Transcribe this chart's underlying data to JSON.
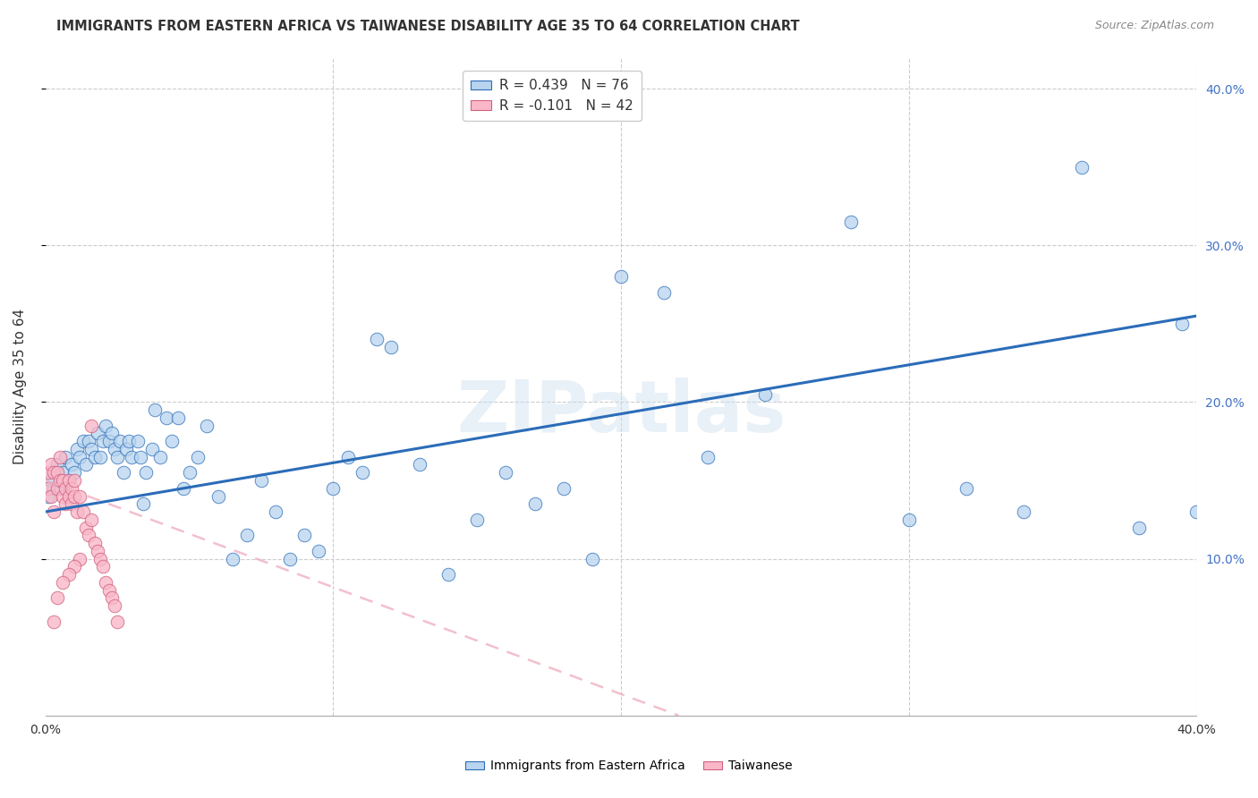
{
  "title": "IMMIGRANTS FROM EASTERN AFRICA VS TAIWANESE DISABILITY AGE 35 TO 64 CORRELATION CHART",
  "source": "Source: ZipAtlas.com",
  "ylabel": "Disability Age 35 to 64",
  "xmin": 0.0,
  "xmax": 0.4,
  "ymin": 0.0,
  "ymax": 0.42,
  "x_ticks": [
    0.0,
    0.1,
    0.2,
    0.3,
    0.4
  ],
  "x_tick_labels": [
    "0.0%",
    "",
    "",
    "",
    "40.0%"
  ],
  "y_ticks": [
    0.1,
    0.2,
    0.3,
    0.4
  ],
  "y_tick_labels": [
    "10.0%",
    "20.0%",
    "30.0%",
    "40.0%"
  ],
  "legend1_label": "R = 0.439   N = 76",
  "legend2_label": "R = -0.101   N = 42",
  "series1_color": "#b8d4ee",
  "series2_color": "#f9b8c8",
  "trend1_color": "#2b6cb8",
  "trend2_color": "#f0b0c0",
  "watermark_text": "ZIPatlas",
  "blue_scatter_x": [
    0.001,
    0.002,
    0.003,
    0.004,
    0.005,
    0.006,
    0.007,
    0.008,
    0.009,
    0.01,
    0.011,
    0.012,
    0.013,
    0.014,
    0.015,
    0.016,
    0.017,
    0.018,
    0.019,
    0.02,
    0.021,
    0.022,
    0.023,
    0.024,
    0.025,
    0.026,
    0.027,
    0.028,
    0.029,
    0.03,
    0.032,
    0.033,
    0.034,
    0.035,
    0.037,
    0.038,
    0.04,
    0.042,
    0.044,
    0.046,
    0.048,
    0.05,
    0.053,
    0.056,
    0.06,
    0.065,
    0.07,
    0.075,
    0.08,
    0.085,
    0.09,
    0.095,
    0.1,
    0.105,
    0.11,
    0.115,
    0.12,
    0.13,
    0.14,
    0.15,
    0.16,
    0.17,
    0.18,
    0.19,
    0.2,
    0.215,
    0.23,
    0.25,
    0.28,
    0.3,
    0.32,
    0.34,
    0.36,
    0.38,
    0.395,
    0.4
  ],
  "blue_scatter_y": [
    0.14,
    0.15,
    0.145,
    0.16,
    0.145,
    0.155,
    0.165,
    0.15,
    0.16,
    0.155,
    0.17,
    0.165,
    0.175,
    0.16,
    0.175,
    0.17,
    0.165,
    0.18,
    0.165,
    0.175,
    0.185,
    0.175,
    0.18,
    0.17,
    0.165,
    0.175,
    0.155,
    0.17,
    0.175,
    0.165,
    0.175,
    0.165,
    0.135,
    0.155,
    0.17,
    0.195,
    0.165,
    0.19,
    0.175,
    0.19,
    0.145,
    0.155,
    0.165,
    0.185,
    0.14,
    0.1,
    0.115,
    0.15,
    0.13,
    0.1,
    0.115,
    0.105,
    0.145,
    0.165,
    0.155,
    0.24,
    0.235,
    0.16,
    0.09,
    0.125,
    0.155,
    0.135,
    0.145,
    0.1,
    0.28,
    0.27,
    0.165,
    0.205,
    0.315,
    0.125,
    0.145,
    0.13,
    0.35,
    0.12,
    0.25,
    0.13
  ],
  "pink_scatter_x": [
    0.001,
    0.001,
    0.002,
    0.002,
    0.003,
    0.003,
    0.004,
    0.004,
    0.005,
    0.005,
    0.006,
    0.006,
    0.007,
    0.007,
    0.008,
    0.008,
    0.009,
    0.009,
    0.01,
    0.01,
    0.011,
    0.012,
    0.013,
    0.014,
    0.015,
    0.016,
    0.017,
    0.018,
    0.019,
    0.02,
    0.021,
    0.022,
    0.023,
    0.024,
    0.025,
    0.016,
    0.012,
    0.01,
    0.008,
    0.006,
    0.004,
    0.003
  ],
  "pink_scatter_y": [
    0.155,
    0.145,
    0.16,
    0.14,
    0.155,
    0.13,
    0.145,
    0.155,
    0.15,
    0.165,
    0.14,
    0.15,
    0.145,
    0.135,
    0.15,
    0.14,
    0.145,
    0.135,
    0.14,
    0.15,
    0.13,
    0.14,
    0.13,
    0.12,
    0.115,
    0.125,
    0.11,
    0.105,
    0.1,
    0.095,
    0.085,
    0.08,
    0.075,
    0.07,
    0.06,
    0.185,
    0.1,
    0.095,
    0.09,
    0.085,
    0.075,
    0.06
  ],
  "blue_trend_x0": 0.0,
  "blue_trend_y0": 0.13,
  "blue_trend_x1": 0.4,
  "blue_trend_y1": 0.255,
  "pink_trend_x0": 0.0,
  "pink_trend_y0": 0.15,
  "pink_trend_x1": 0.22,
  "pink_trend_y1": 0.0
}
